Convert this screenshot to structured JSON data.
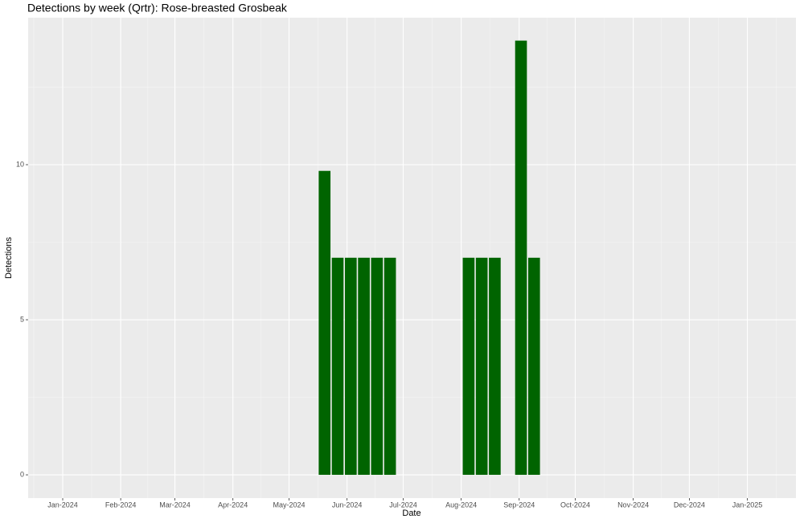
{
  "chart_data": {
    "type": "bar",
    "title": "Detections by week (Qrtr): Rose-breasted Grosbeak",
    "x_label": "Date",
    "y_label": "Detections",
    "x": [
      2024.3825,
      2024.4016,
      2024.4208,
      2024.4399,
      2024.459,
      2024.4781,
      2024.5929,
      2024.612,
      2024.6311,
      2024.6694,
      2024.6885
    ],
    "values": [
      9.8,
      7,
      7,
      7,
      7,
      7,
      7,
      7,
      7,
      14,
      7
    ],
    "color": "#006400",
    "xlim": [
      2023.9495,
      2025.071
    ],
    "xticks": [
      {
        "value": 2024.0,
        "label": "Jan-2024"
      },
      {
        "value": 2024.0847,
        "label": "Feb-2024"
      },
      {
        "value": 2024.1639,
        "label": "Mar-2024"
      },
      {
        "value": 2024.2486,
        "label": "Apr-2024"
      },
      {
        "value": 2024.3306,
        "label": "May-2024"
      },
      {
        "value": 2024.4153,
        "label": "Jun-2024"
      },
      {
        "value": 2024.4973,
        "label": "Jul-2024"
      },
      {
        "value": 2024.582,
        "label": "Aug-2024"
      },
      {
        "value": 2024.6667,
        "label": "Sep-2024"
      },
      {
        "value": 2024.7486,
        "label": "Oct-2024"
      },
      {
        "value": 2024.8333,
        "label": "Nov-2024"
      },
      {
        "value": 2024.9153,
        "label": "Dec-2024"
      },
      {
        "value": 2025.0,
        "label": "Jan-2025"
      }
    ],
    "ylim": [
      -0.75,
      14.74
    ],
    "yticks": [
      0,
      5,
      10
    ],
    "grid": true
  }
}
